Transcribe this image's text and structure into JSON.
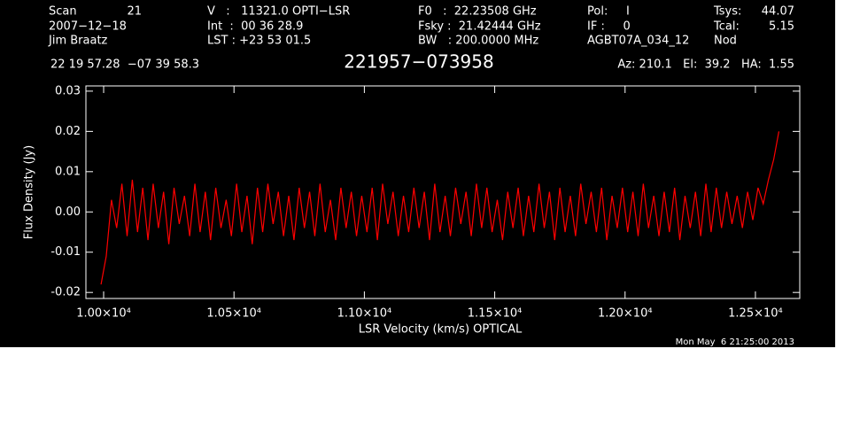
{
  "chart_data": {
    "type": "line",
    "title": "221957−073958",
    "header": [
      "Scan",
      "21",
      "2007−12−18",
      "Jim Braatz",
      "V   :   11321.0 OPTI−LSR",
      "Int  :  00 36 28.9",
      "LST : +23 53 01.5",
      "F0   :  22.23508 GHz",
      "Fsky :  21.42444 GHz",
      "BW   : 200.0000 MHz",
      "Pol:     I",
      "IF :     0",
      "AGBT07A_034_12",
      "Tsys:",
      "44.07",
      "Tcal:",
      "5.15",
      "Nod",
      "22 19 57.28  −07 39 58.3",
      "Az: 210.1   El:  39.2   HA:  1.55"
    ],
    "date": "Mon May  6 21:25:00 2013",
    "xlabel": "LSR Velocity (km/s) OPTICAL",
    "ylabel": "Flux Density (Jy)",
    "color": "#ff0000",
    "xlim": [
      9932,
      12670
    ],
    "ylim": [
      -0.0215,
      0.0313
    ],
    "xticks": [
      {
        "value": 10000,
        "label": "1.00×10⁴"
      },
      {
        "value": 10500,
        "label": "1.05×10⁴"
      },
      {
        "value": 11000,
        "label": "1.10×10⁴"
      },
      {
        "value": 11500,
        "label": "1.15×10⁴"
      },
      {
        "value": 12000,
        "label": "1.20×10⁴"
      },
      {
        "value": 12500,
        "label": "1.25×10⁴"
      }
    ],
    "yticks": [
      -0.02,
      -0.01,
      {
        "value": 0,
        "label": "0.00"
      },
      0.01,
      0.02,
      0.03
    ],
    "x": [
      9990,
      10010,
      10030,
      10050,
      10070,
      10090,
      10110,
      10130,
      10150,
      10170,
      10190,
      10210,
      10230,
      10250,
      10270,
      10290,
      10310,
      10330,
      10350,
      10370,
      10390,
      10410,
      10430,
      10450,
      10470,
      10490,
      10510,
      10530,
      10550,
      10570,
      10590,
      10610,
      10630,
      10650,
      10670,
      10690,
      10710,
      10730,
      10750,
      10770,
      10790,
      10810,
      10830,
      10850,
      10870,
      10890,
      10910,
      10930,
      10950,
      10970,
      10990,
      11010,
      11030,
      11050,
      11070,
      11090,
      11110,
      11130,
      11150,
      11170,
      11190,
      11210,
      11230,
      11250,
      11270,
      11290,
      11310,
      11330,
      11350,
      11370,
      11390,
      11410,
      11430,
      11450,
      11470,
      11490,
      11510,
      11530,
      11550,
      11570,
      11590,
      11610,
      11630,
      11650,
      11670,
      11690,
      11710,
      11730,
      11750,
      11770,
      11790,
      11810,
      11830,
      11850,
      11870,
      11890,
      11910,
      11930,
      11950,
      11970,
      11990,
      12010,
      12030,
      12050,
      12070,
      12090,
      12110,
      12130,
      12150,
      12170,
      12190,
      12210,
      12230,
      12250,
      12270,
      12290,
      12310,
      12330,
      12350,
      12370,
      12390,
      12410,
      12430,
      12450,
      12470,
      12490,
      12510,
      12530,
      12550,
      12570,
      12590
    ],
    "values": [
      -0.018,
      -0.011,
      0.003,
      -0.004,
      0.007,
      -0.006,
      0.008,
      -0.005,
      0.006,
      -0.007,
      0.007,
      -0.004,
      0.005,
      -0.008,
      0.006,
      -0.003,
      0.004,
      -0.006,
      0.007,
      -0.005,
      0.005,
      -0.007,
      0.006,
      -0.004,
      0.003,
      -0.006,
      0.007,
      -0.005,
      0.004,
      -0.008,
      0.006,
      -0.005,
      0.007,
      -0.003,
      0.005,
      -0.006,
      0.004,
      -0.007,
      0.006,
      -0.004,
      0.005,
      -0.006,
      0.007,
      -0.005,
      0.003,
      -0.007,
      0.006,
      -0.004,
      0.005,
      -0.006,
      0.004,
      -0.005,
      0.006,
      -0.007,
      0.007,
      -0.003,
      0.005,
      -0.006,
      0.004,
      -0.005,
      0.006,
      -0.004,
      0.005,
      -0.007,
      0.007,
      -0.005,
      0.004,
      -0.006,
      0.006,
      -0.003,
      0.005,
      -0.006,
      0.007,
      -0.004,
      0.006,
      -0.005,
      0.003,
      -0.007,
      0.005,
      -0.004,
      0.006,
      -0.006,
      0.004,
      -0.005,
      0.007,
      -0.004,
      0.005,
      -0.007,
      0.006,
      -0.005,
      0.004,
      -0.006,
      0.007,
      -0.003,
      0.005,
      -0.005,
      0.006,
      -0.007,
      0.004,
      -0.004,
      0.006,
      -0.005,
      0.005,
      -0.006,
      0.007,
      -0.004,
      0.004,
      -0.006,
      0.005,
      -0.005,
      0.006,
      -0.007,
      0.004,
      -0.004,
      0.005,
      -0.006,
      0.007,
      -0.005,
      0.006,
      -0.004,
      0.005,
      -0.003,
      0.004,
      -0.004,
      0.005,
      -0.002,
      0.006,
      0.002,
      0.008,
      0.013,
      0.02
    ]
  }
}
